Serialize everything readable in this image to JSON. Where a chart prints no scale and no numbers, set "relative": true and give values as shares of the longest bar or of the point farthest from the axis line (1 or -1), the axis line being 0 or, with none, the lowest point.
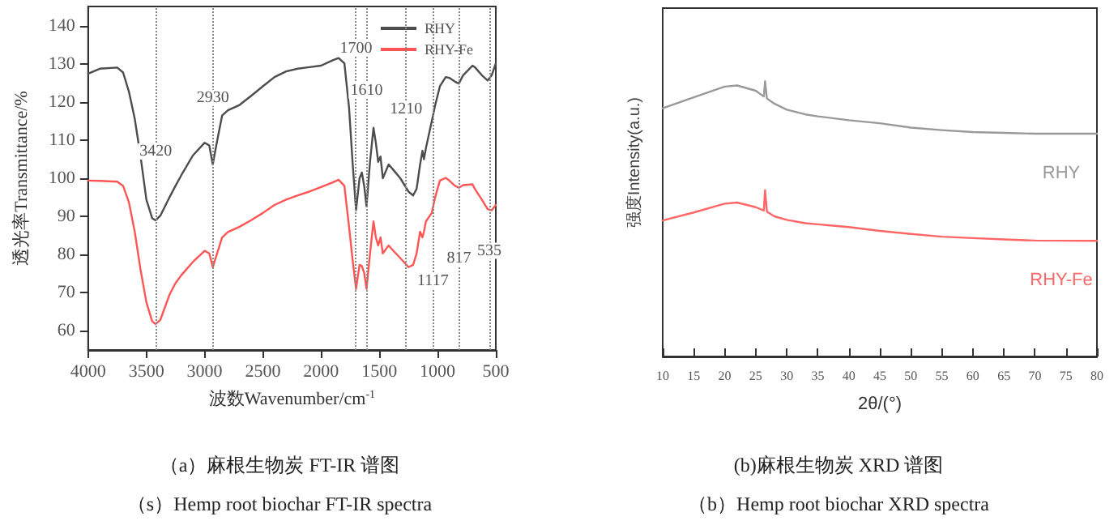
{
  "chart_data": [
    {
      "type": "line",
      "title": "（a）麻根生物炭 FT-IR 谱图",
      "subtitle": "（s）Hemp root biochar FT-IR spectra",
      "xlabel": "波数Wavenumber/cm$^{-1}$",
      "ylabel": "透光率Transmittance/%",
      "xlim": [
        4000,
        500
      ],
      "xticks": [
        4000,
        3500,
        3000,
        2500,
        2000,
        1500,
        1000,
        500
      ],
      "ylim": [
        55,
        145
      ],
      "yticks": [
        60,
        70,
        80,
        90,
        100,
        110,
        120,
        130,
        140
      ],
      "grid": false,
      "legend": "top right",
      "marker": "none",
      "line_style": "solid",
      "x": [
        4000,
        3900,
        3750,
        3700,
        3650,
        3600,
        3550,
        3500,
        3450,
        3420,
        3380,
        3300,
        3250,
        3200,
        3100,
        3000,
        2960,
        2930,
        2900,
        2850,
        2800,
        2700,
        2600,
        2500,
        2400,
        2300,
        2200,
        2100,
        2000,
        1900,
        1850,
        1800,
        1760,
        1730,
        1700,
        1670,
        1650,
        1630,
        1610,
        1580,
        1550,
        1530,
        1510,
        1490,
        1470,
        1420,
        1380,
        1320,
        1250,
        1210,
        1180,
        1150,
        1130,
        1117,
        1100,
        1050,
        1020,
        980,
        930,
        900,
        850,
        817,
        780,
        700,
        680,
        620,
        570,
        535,
        500
      ],
      "series": [
        {
          "name": "RHY",
          "color": "#4d4d4d",
          "values": [
            127.4,
            128.7,
            129,
            127.7,
            122.7,
            115.6,
            105.7,
            94.4,
            89.5,
            89,
            90.2,
            95.1,
            98,
            100.8,
            106,
            109.3,
            108.6,
            103.6,
            108.6,
            116.4,
            117.8,
            119.2,
            121.6,
            124.1,
            126.5,
            128,
            128.7,
            129.1,
            129.5,
            130.9,
            131.5,
            130.1,
            118.5,
            104.3,
            91.6,
            100,
            101.5,
            98,
            92.6,
            104.3,
            113.2,
            109.3,
            104.3,
            105.7,
            100,
            103.6,
            102.2,
            100,
            96.5,
            95.5,
            97.2,
            103.6,
            107.2,
            105,
            107.9,
            114.9,
            119.2,
            124.1,
            126.5,
            126.3,
            125.3,
            124.8,
            127,
            129.5,
            129.1,
            127,
            125.6,
            127,
            130.1
          ]
        },
        {
          "name": "RHY-Fe",
          "color": "#ff5555",
          "values": [
            99.4,
            99.3,
            99.1,
            98,
            93.7,
            86,
            76,
            67.5,
            62.5,
            61.8,
            62.9,
            69.6,
            72.5,
            74.6,
            78.1,
            81,
            80.3,
            76.7,
            79.6,
            84.5,
            85.9,
            87.3,
            89,
            90.9,
            93,
            94.4,
            95.5,
            96.5,
            97.7,
            98.9,
            99.6,
            98,
            87.3,
            78.8,
            71,
            77.3,
            77,
            75.2,
            71,
            80.3,
            88.7,
            84.5,
            82.4,
            84.5,
            80.3,
            82.4,
            81,
            79.1,
            76.7,
            77.3,
            80.3,
            86,
            84.5,
            86,
            88.7,
            90.9,
            95.1,
            99.4,
            100.1,
            99.4,
            98,
            97.5,
            98.2,
            98.4,
            97.2,
            94.4,
            91.9,
            91.6,
            93
          ]
        }
      ],
      "ref_lines": [
        {
          "axis": "x",
          "value": 3420,
          "color": "#888888",
          "line_style": "dotted"
        },
        {
          "axis": "x",
          "value": 2930,
          "color": "#888888",
          "line_style": "dotted"
        },
        {
          "axis": "x",
          "value": 1700,
          "color": "#888888",
          "line_style": "dotted"
        },
        {
          "axis": "x",
          "value": 1610,
          "color": "#888888",
          "line_style": "dotted"
        },
        {
          "axis": "x",
          "value": 1270,
          "color": "#888888",
          "line_style": "dotted"
        },
        {
          "axis": "x",
          "value": 1040,
          "color": "#888888",
          "line_style": "dotted"
        },
        {
          "axis": "x",
          "value": 817,
          "color": "#888888",
          "line_style": "dotted"
        },
        {
          "axis": "x",
          "value": 555,
          "color": "#888888",
          "line_style": "dotted"
        }
      ],
      "annotations": [
        {
          "text": "3420",
          "x": 3420,
          "y": 107
        },
        {
          "text": "2930",
          "x": 2930,
          "y": 121
        },
        {
          "text": "1700",
          "x": 1700,
          "y": 134
        },
        {
          "text": "1610",
          "x": 1610,
          "y": 123
        },
        {
          "text": "1210",
          "x": 1270,
          "y": 118
        },
        {
          "text": "1117",
          "x": 1040,
          "y": 73
        },
        {
          "text": "817",
          "x": 817,
          "y": 79
        },
        {
          "text": "535",
          "x": 555,
          "y": 81
        }
      ]
    },
    {
      "type": "line",
      "title": "(b)麻根生物炭 XRD 谱图",
      "subtitle": "（b）Hemp root biochar XRD spectra",
      "xlabel": "2θ/(°)",
      "ylabel": "强度Intensity(a.u.)",
      "relative": true,
      "xlim": [
        10,
        80
      ],
      "xticks": [
        10,
        15,
        20,
        25,
        30,
        35,
        40,
        45,
        50,
        55,
        60,
        65,
        70,
        75,
        80
      ],
      "tick_labels": "x",
      "grid": false,
      "legend": false,
      "marker": "none",
      "line_style": "solid",
      "x": [
        10,
        15,
        20,
        22,
        25,
        26.3,
        26.5,
        26.8,
        28,
        30,
        33,
        35,
        40,
        45,
        50,
        55,
        60,
        65,
        70,
        80
      ],
      "series": [
        {
          "name": "RHY",
          "color": "#999999",
          "values": [
            0.901,
            0.941,
            0.98,
            0.984,
            0.965,
            0.944,
            1,
            0.937,
            0.918,
            0.896,
            0.879,
            0.872,
            0.858,
            0.847,
            0.831,
            0.822,
            0.815,
            0.812,
            0.809,
            0.809
          ]
        },
        {
          "name": "RHY-Fe",
          "color": "#ff6666",
          "values": [
            0.494,
            0.523,
            0.555,
            0.559,
            0.542,
            0.53,
            0.604,
            0.526,
            0.509,
            0.496,
            0.484,
            0.48,
            0.47,
            0.456,
            0.445,
            0.435,
            0.43,
            0.425,
            0.421,
            0.42
          ]
        }
      ]
    }
  ]
}
